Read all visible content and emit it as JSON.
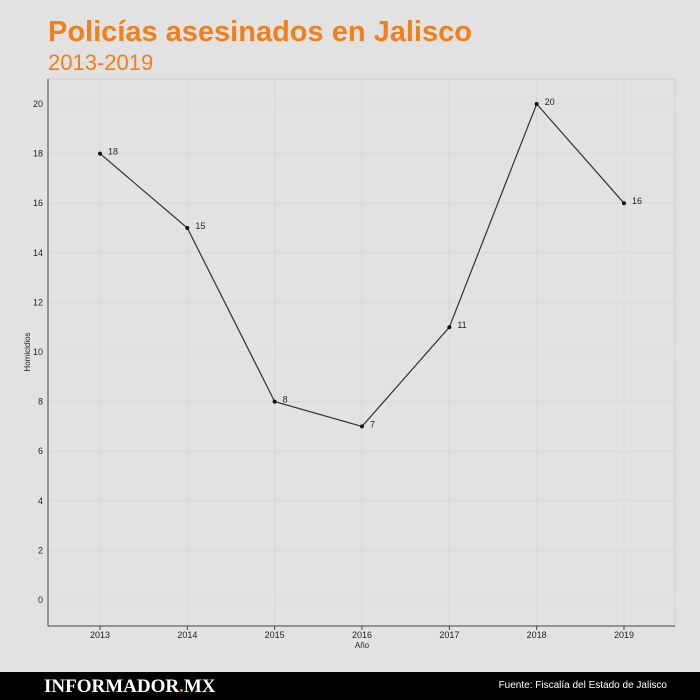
{
  "chart_data": {
    "type": "line",
    "title": "Policías asesinados en Jalisco",
    "subtitle": "2013-2019",
    "xlabel": "Año",
    "ylabel": "Homicidios",
    "categories": [
      "2013",
      "2014",
      "2015",
      "2016",
      "2017",
      "2018",
      "2019"
    ],
    "values": [
      18,
      15,
      8,
      7,
      11,
      20,
      16
    ],
    "yticks": [
      0,
      2,
      4,
      6,
      8,
      10,
      12,
      14,
      16,
      18,
      20
    ],
    "ylim": [
      -1,
      21
    ],
    "grid": true,
    "line_color": "#333333"
  },
  "footer": {
    "logo_part1": "INFORMADOR",
    "logo_dot": ".",
    "logo_part2": "MX",
    "source": "Fuente: Fiscalía del Estado de Jalisco"
  }
}
